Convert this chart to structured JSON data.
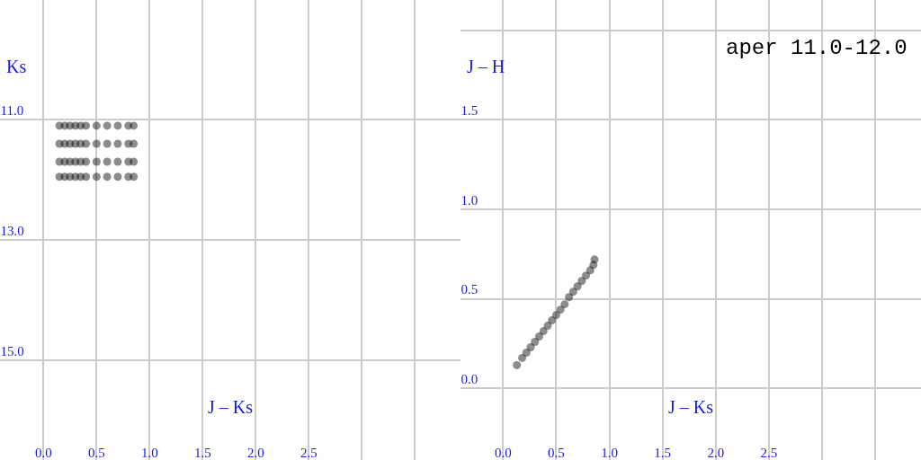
{
  "chart_data": [
    {
      "type": "scatter",
      "xlabel": "J – Ks",
      "ylabel": "Ks",
      "marker": "circle",
      "grid": true,
      "xlim": [
        -0.41,
        3.93
      ],
      "xticks": [
        {
          "value": 0,
          "label": "0.0"
        },
        {
          "value": 0.5,
          "label": "0.5"
        },
        {
          "value": 1,
          "label": "1.0"
        },
        {
          "value": 1.5,
          "label": "1.5"
        },
        {
          "value": 2,
          "label": "2.0"
        },
        {
          "value": 2.5,
          "label": "2.5"
        },
        {
          "value": 3,
          "label": null
        },
        {
          "value": 3.5,
          "label": null
        }
      ],
      "ylim": [
        16.66,
        9.01
      ],
      "yticks": [
        {
          "value": 11,
          "label": "11.0"
        },
        {
          "value": 13,
          "label": "13.0"
        },
        {
          "value": 15,
          "label": "15.0"
        }
      ],
      "series": [
        {
          "color": "#000000",
          "x": [
            0.15,
            0.2,
            0.25,
            0.3,
            0.35,
            0.4,
            0.5,
            0.6,
            0.7,
            0.8,
            0.85,
            0.15,
            0.2,
            0.25,
            0.3,
            0.35,
            0.4,
            0.5,
            0.6,
            0.7,
            0.8,
            0.85,
            0.15,
            0.2,
            0.25,
            0.3,
            0.35,
            0.4,
            0.5,
            0.6,
            0.7,
            0.8,
            0.85,
            0.15,
            0.2,
            0.25,
            0.3,
            0.35,
            0.4,
            0.5,
            0.6,
            0.7,
            0.8,
            0.85
          ],
          "values": [
            11.1,
            11.1,
            11.1,
            11.1,
            11.1,
            11.1,
            11.1,
            11.1,
            11.1,
            11.1,
            11.1,
            11.4,
            11.4,
            11.4,
            11.4,
            11.4,
            11.4,
            11.4,
            11.4,
            11.4,
            11.4,
            11.4,
            11.7,
            11.7,
            11.7,
            11.7,
            11.7,
            11.7,
            11.7,
            11.7,
            11.7,
            11.7,
            11.7,
            11.95,
            11.95,
            11.95,
            11.95,
            11.95,
            11.95,
            11.95,
            11.95,
            11.95,
            11.95,
            11.95
          ]
        }
      ]
    },
    {
      "type": "scatter",
      "title": "aper 11.0-12.0",
      "xlabel": "J – Ks",
      "ylabel": "J – H",
      "marker": "circle",
      "grid": true,
      "xlim": [
        -0.4,
        3.93
      ],
      "xticks": [
        {
          "value": 0,
          "label": "0.0"
        },
        {
          "value": 0.5,
          "label": "0.5"
        },
        {
          "value": 1,
          "label": "1.0"
        },
        {
          "value": 1.5,
          "label": "1.5"
        },
        {
          "value": 2,
          "label": "2.0"
        },
        {
          "value": 2.5,
          "label": "2.5"
        },
        {
          "value": 3,
          "label": null
        },
        {
          "value": 3.5,
          "label": null
        }
      ],
      "ylim": [
        -0.4,
        2.17
      ],
      "yticks": [
        {
          "value": 0,
          "label": "0.0"
        },
        {
          "value": 0.5,
          "label": "0.5"
        },
        {
          "value": 1,
          "label": "1.0"
        },
        {
          "value": 1.5,
          "label": "1.5"
        },
        {
          "value": 2,
          "label": null
        }
      ],
      "series": [
        {
          "color": "#000000",
          "x": [
            0.13,
            0.18,
            0.22,
            0.26,
            0.3,
            0.34,
            0.38,
            0.42,
            0.46,
            0.5,
            0.54,
            0.58,
            0.62,
            0.66,
            0.7,
            0.74,
            0.78,
            0.82,
            0.85,
            0.86
          ],
          "values": [
            0.13,
            0.17,
            0.2,
            0.23,
            0.26,
            0.29,
            0.32,
            0.35,
            0.38,
            0.41,
            0.44,
            0.47,
            0.51,
            0.54,
            0.57,
            0.6,
            0.63,
            0.66,
            0.69,
            0.72
          ]
        }
      ]
    }
  ]
}
